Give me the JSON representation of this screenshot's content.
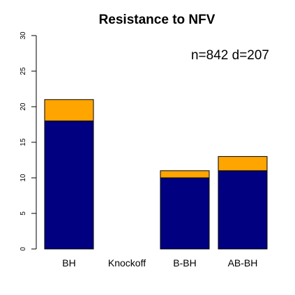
{
  "chart_data": {
    "type": "bar",
    "stacked": true,
    "title": "Resistance to NFV",
    "annotation": "n=842 d=207",
    "categories": [
      "BH",
      "Knockoff",
      "B-BH",
      "AB-BH"
    ],
    "series": [
      {
        "values": [
          18,
          0,
          10,
          11
        ],
        "color": "#000080"
      },
      {
        "values": [
          3,
          0,
          1,
          2
        ],
        "color": "#FFA500"
      }
    ],
    "ylim": [
      0,
      30
    ],
    "yticks": [
      0,
      5,
      10,
      15,
      20,
      25,
      30
    ],
    "grid": false,
    "legend": "none"
  }
}
